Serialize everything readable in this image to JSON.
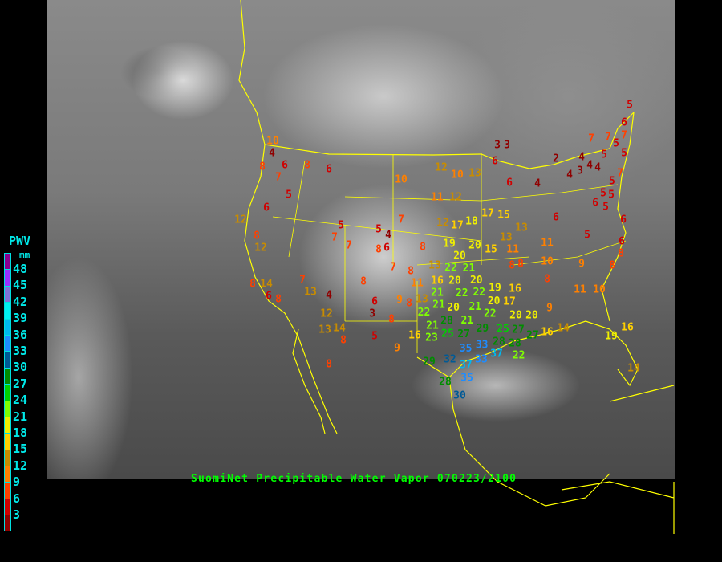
{
  "caption": "SuomiNet Precipitable Water Vapor 070223/2100",
  "legend": {
    "title": "PWV",
    "unit": "mm",
    "colors": [
      "#8a0090",
      "#9a30ff",
      "#8070d8",
      "#00f0f0",
      "#00b8f0",
      "#1e8cff",
      "#005a96",
      "#008c00",
      "#00d000",
      "#80ff00",
      "#f0f000",
      "#ffd000",
      "#c88c00",
      "#ff8000",
      "#ff4000",
      "#d00000",
      "#900000"
    ],
    "labels": [
      "48",
      "45",
      "42",
      "39",
      "36",
      "33",
      "30",
      "27",
      "24",
      "21",
      "18",
      "15",
      "12",
      "9",
      "6",
      "3"
    ]
  },
  "stations": [
    10,
    4,
    8,
    6,
    7,
    8,
    6,
    5,
    6,
    12,
    8,
    12,
    5,
    7,
    7,
    5,
    4,
    6,
    8,
    7,
    10,
    12,
    10,
    13,
    11,
    12,
    3,
    6,
    12,
    17,
    18,
    17,
    15,
    8,
    19,
    20,
    15,
    20,
    7,
    8,
    13,
    22,
    21,
    16,
    20,
    20,
    8,
    14,
    6,
    8,
    7,
    13,
    4,
    8,
    11,
    21,
    22,
    22,
    21,
    19,
    21,
    20,
    21,
    20,
    6,
    9,
    8,
    13,
    22,
    28,
    22,
    17,
    3,
    12,
    8,
    13,
    14,
    8,
    5,
    16,
    21,
    23,
    25,
    27,
    29,
    33,
    9,
    35,
    33,
    37,
    8,
    29,
    32,
    37,
    35,
    28,
    30,
    16,
    20,
    25,
    28,
    27,
    28,
    22,
    27,
    8,
    5,
    6,
    7,
    7,
    5,
    7,
    5,
    5,
    3,
    2,
    4,
    4,
    3,
    4,
    4,
    6,
    4,
    7,
    5,
    5,
    5,
    6,
    5,
    6,
    6,
    5,
    6,
    8,
    8,
    13,
    13,
    11,
    11,
    10,
    9,
    8,
    8,
    11,
    10,
    9,
    20,
    16,
    14,
    16,
    19,
    14
  ]
}
